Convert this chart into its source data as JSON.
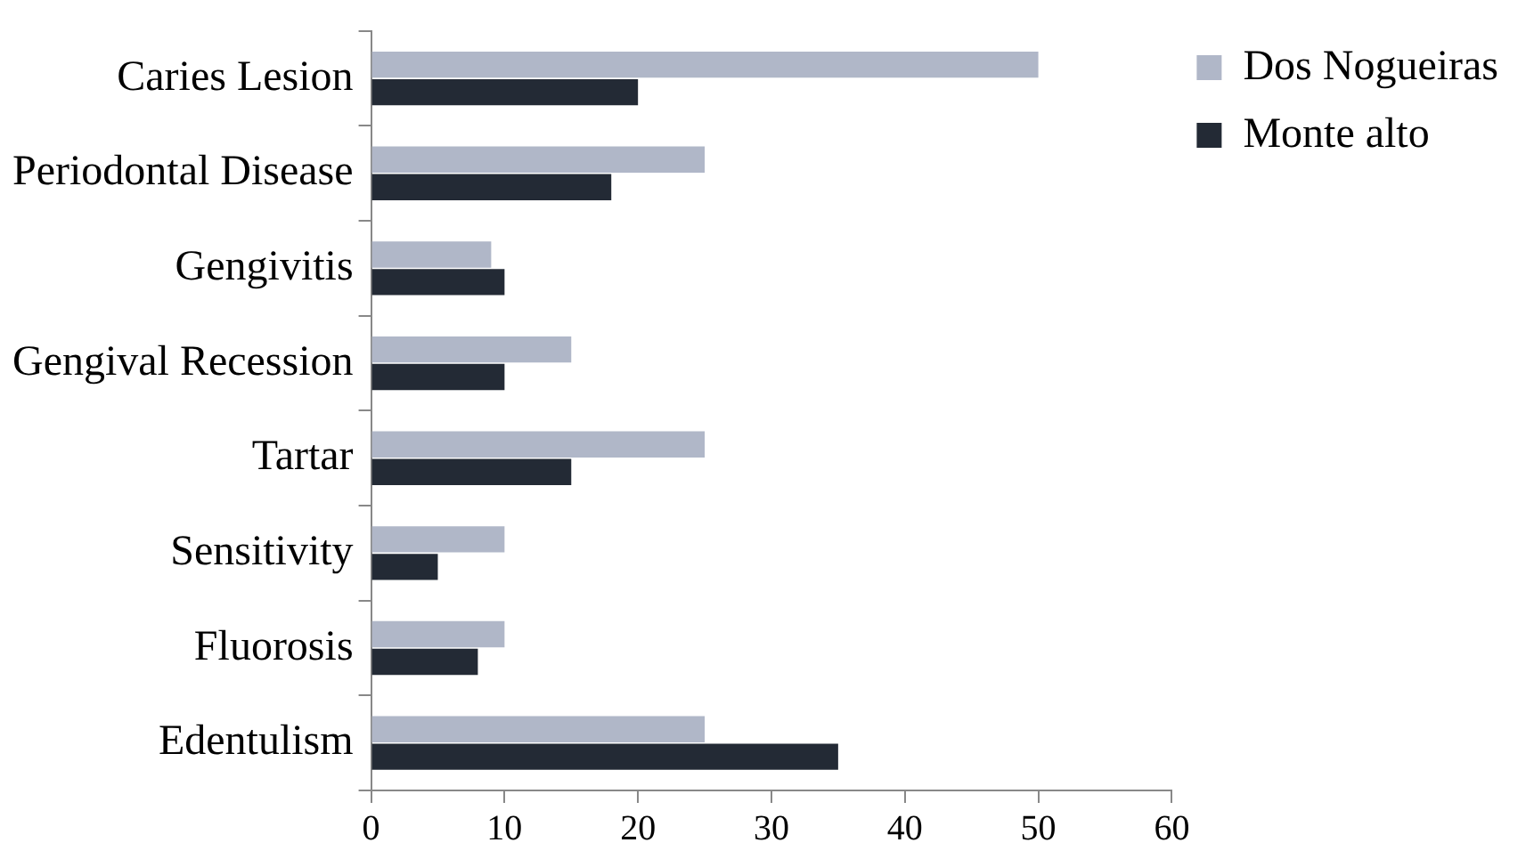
{
  "chart_data": {
    "type": "bar",
    "orientation": "horizontal",
    "categories": [
      "Caries Lesion",
      "Periodontal Disease",
      "Gengivitis",
      "Gengival Recession",
      "Tartar",
      "Sensitivity",
      "Fluorosis",
      "Edentulism"
    ],
    "series": [
      {
        "name": "Dos Nogueiras",
        "color": "#b0b7c8",
        "values": [
          50,
          25,
          9,
          15,
          25,
          10,
          10,
          25
        ]
      },
      {
        "name": "Monte alto",
        "color": "#232a35",
        "values": [
          20,
          18,
          10,
          10,
          15,
          5,
          8,
          35
        ]
      }
    ],
    "xlim": [
      0,
      60
    ],
    "xticks": [
      0,
      10,
      20,
      30,
      40,
      50,
      60
    ],
    "grid": false,
    "legend": "top right"
  }
}
